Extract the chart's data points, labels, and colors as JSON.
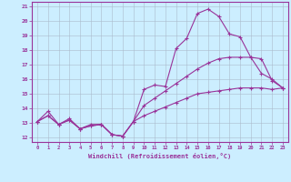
{
  "xlabel": "Windchill (Refroidissement éolien,°C)",
  "bg_color": "#cceeff",
  "line_color": "#993399",
  "grid_color": "#aabbcc",
  "xlim": [
    -0.5,
    23.5
  ],
  "ylim": [
    11.7,
    21.3
  ],
  "xticks": [
    0,
    1,
    2,
    3,
    4,
    5,
    6,
    7,
    8,
    9,
    10,
    11,
    12,
    13,
    14,
    15,
    16,
    17,
    18,
    19,
    20,
    21,
    22,
    23
  ],
  "yticks": [
    12,
    13,
    14,
    15,
    16,
    17,
    18,
    19,
    20,
    21
  ],
  "line1_x": [
    0,
    1,
    2,
    3,
    4,
    5,
    6,
    7,
    8,
    9,
    10,
    11,
    12,
    13,
    14,
    15,
    16,
    17,
    18,
    19,
    20,
    21,
    22,
    23
  ],
  "line1_y": [
    13.1,
    13.8,
    12.9,
    13.3,
    12.6,
    12.9,
    12.9,
    12.2,
    12.1,
    13.1,
    15.3,
    15.6,
    15.5,
    18.1,
    18.8,
    20.5,
    20.8,
    20.3,
    19.1,
    18.9,
    17.5,
    16.4,
    16.0,
    15.4
  ],
  "line2_x": [
    0,
    1,
    2,
    3,
    4,
    5,
    6,
    7,
    8,
    9,
    10,
    11,
    12,
    13,
    14,
    15,
    16,
    17,
    18,
    19,
    20,
    21,
    22,
    23
  ],
  "line2_y": [
    13.1,
    13.5,
    12.9,
    13.2,
    12.6,
    12.8,
    12.9,
    12.2,
    12.1,
    13.1,
    14.2,
    14.7,
    15.2,
    15.7,
    16.2,
    16.7,
    17.1,
    17.4,
    17.5,
    17.5,
    17.5,
    17.4,
    15.9,
    15.4
  ],
  "line3_x": [
    0,
    1,
    2,
    3,
    4,
    5,
    6,
    7,
    8,
    9,
    10,
    11,
    12,
    13,
    14,
    15,
    16,
    17,
    18,
    19,
    20,
    21,
    22,
    23
  ],
  "line3_y": [
    13.1,
    13.5,
    12.9,
    13.2,
    12.6,
    12.8,
    12.9,
    12.2,
    12.1,
    13.1,
    13.5,
    13.8,
    14.1,
    14.4,
    14.7,
    15.0,
    15.1,
    15.2,
    15.3,
    15.4,
    15.4,
    15.4,
    15.3,
    15.4
  ]
}
